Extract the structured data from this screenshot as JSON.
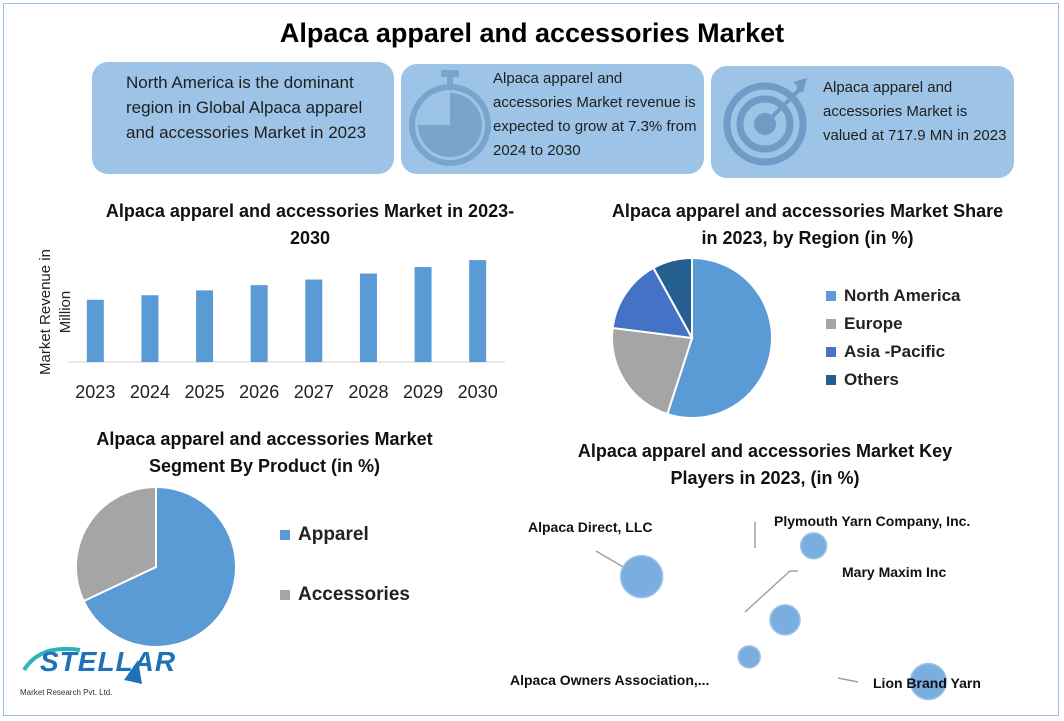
{
  "title": "Alpaca apparel and accessories Market",
  "cards": [
    {
      "text": "North America is the dominant region in Global Alpaca apparel and accessories Market in 2023",
      "icon": "none"
    },
    {
      "text": "Alpaca apparel and accessories Market revenue is expected to grow at 7.3% from 2024 to 2030",
      "icon": "stopwatch-icon"
    },
    {
      "text": "Alpaca apparel and accessories Market is valued at 717.9 MN in 2023",
      "icon": "target-icon"
    }
  ],
  "colors": {
    "blue": "#5b9bd5",
    "gray": "#a5a5a5",
    "royal": "#4472c4",
    "navy": "#255e91",
    "card": "#9dc3e6"
  },
  "chart_data": [
    {
      "type": "bar",
      "title": "Alpaca apparel and accessories Market in 2023-2030",
      "ylabel": "Market Revenue in Million",
      "categories": [
        "2023",
        "2024",
        "2025",
        "2026",
        "2027",
        "2028",
        "2029",
        "2030"
      ],
      "values": [
        717.9,
        770.3,
        826.5,
        886.8,
        951.5,
        1021.0,
        1095.5,
        1175.5
      ],
      "ylim": [
        0,
        1200
      ]
    },
    {
      "type": "pie",
      "title": "Alpaca apparel and accessories Market Share in 2023, by Region (in %)",
      "labels": [
        "North America",
        "Europe",
        "Asia -Pacific",
        "Others"
      ],
      "values": [
        55,
        22,
        15,
        8
      ]
    },
    {
      "type": "pie",
      "title": "Alpaca apparel and accessories Market Segment By Product (in %)",
      "labels": [
        "Apparel",
        "Accessories"
      ],
      "values": [
        68,
        32
      ]
    },
    {
      "type": "scatter",
      "title": "Alpaca apparel and accessories Market Key Players in 2023, (in %)",
      "points": [
        {
          "label": "Alpaca Direct, LLC",
          "x": 1.0,
          "y": 3.5,
          "size": 21
        },
        {
          "label": "Plymouth Yarn Company, Inc.",
          "x": 2.2,
          "y": 4.0,
          "size": 13
        },
        {
          "label": "Mary Maxim Inc",
          "x": 2.0,
          "y": 2.8,
          "size": 15
        },
        {
          "label": "Alpaca Owners Association,...",
          "x": 1.75,
          "y": 2.2,
          "size": 11
        },
        {
          "label": "Lion Brand Yarn",
          "x": 3.0,
          "y": 1.8,
          "size": 18
        }
      ]
    }
  ],
  "logo": {
    "word": "STELLAR",
    "sub": "Market Research Pvt. Ltd."
  }
}
